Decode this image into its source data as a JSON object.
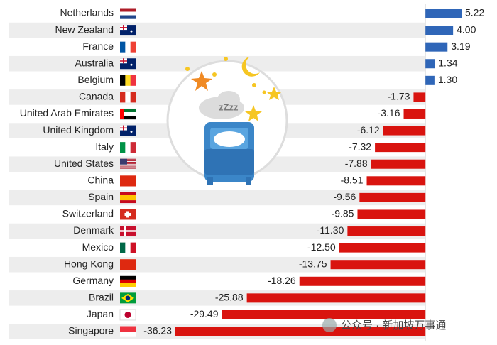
{
  "chart_data": {
    "type": "bar",
    "orientation": "horizontal",
    "categories": [
      "Netherlands",
      "New Zealand",
      "France",
      "Australia",
      "Belgium",
      "Canada",
      "United Arab Emirates",
      "United Kingdom",
      "Italy",
      "United States",
      "China",
      "Spain",
      "Switzerland",
      "Denmark",
      "Mexico",
      "Hong Kong",
      "Germany",
      "Brazil",
      "Japan",
      "Singapore"
    ],
    "values": [
      5.22,
      4.0,
      3.19,
      1.34,
      1.3,
      -1.73,
      -3.16,
      -6.12,
      -7.32,
      -7.88,
      -8.51,
      -9.56,
      -9.85,
      -11.3,
      -12.5,
      -13.75,
      -18.26,
      -25.88,
      -29.49,
      -36.23
    ],
    "value_labels": [
      "5.22",
      "4.00",
      "3.19",
      "1.34",
      "1.30",
      "-1.73",
      "-3.16",
      "-6.12",
      "-7.32",
      "-7.88",
      "-8.51",
      "-9.56",
      "-9.85",
      "-11.30",
      "-12.50",
      "-13.75",
      "-18.26",
      "-25.88",
      "-29.49",
      "-36.23"
    ],
    "positive_color": "#2f66b8",
    "negative_color": "#d9140f",
    "watermark": "公众号 · 新加坡万事通"
  }
}
